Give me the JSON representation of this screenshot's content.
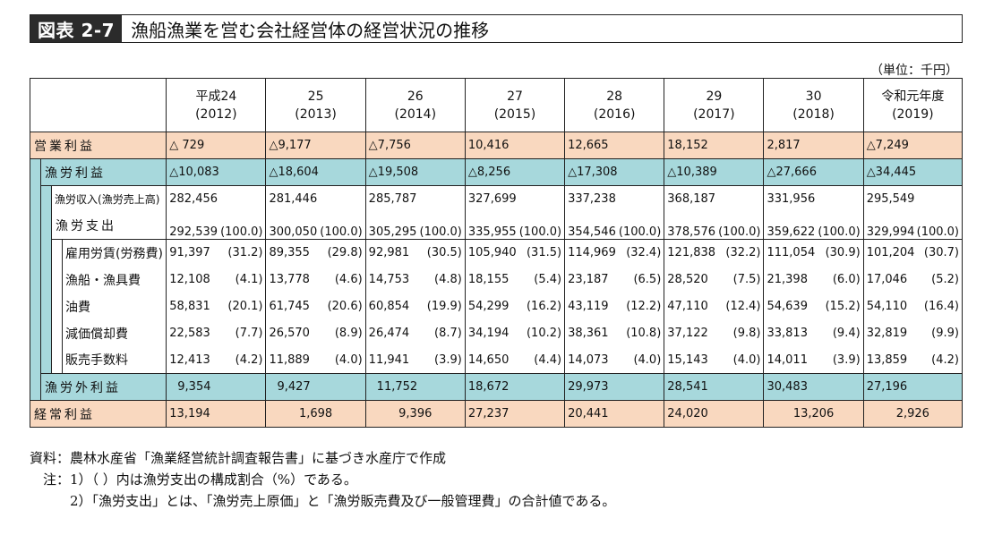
{
  "figure": {
    "label": "図表 2-7",
    "title": "漁船漁業を営む会社経営体の経営状況の推移"
  },
  "unit": "（単位：千円）",
  "columns": [
    {
      "top": "平成24",
      "bottom": "(2012)"
    },
    {
      "top": "25",
      "bottom": "(2013)"
    },
    {
      "top": "26",
      "bottom": "(2014)"
    },
    {
      "top": "27",
      "bottom": "(2015)"
    },
    {
      "top": "28",
      "bottom": "(2016)"
    },
    {
      "top": "29",
      "bottom": "(2017)"
    },
    {
      "top": "30",
      "bottom": "(2018)"
    },
    {
      "top": "令和元年度",
      "bottom": "(2019)"
    }
  ],
  "rows": {
    "operating_profit": {
      "label": "営業利益",
      "values": [
        "△ 729",
        "△9,177",
        "△7,756",
        "10,416",
        "12,665",
        "18,152",
        "2,817",
        "△7,249"
      ]
    },
    "fishing_profit": {
      "label": "漁労利益",
      "values": [
        "△10,083",
        "△18,604",
        "△19,508",
        "△8,256",
        "△17,308",
        "△10,389",
        "△27,666",
        "△34,445"
      ]
    },
    "fishing_income": {
      "label": "漁労収入(漁労売上高)",
      "values": [
        "282,456",
        "281,446",
        "285,787",
        "327,699",
        "337,238",
        "368,187",
        "331,956",
        "295,549"
      ]
    },
    "fishing_expense": {
      "label": "漁労支出",
      "values": [
        [
          "292,539",
          "(100.0)"
        ],
        [
          "300,050",
          "(100.0)"
        ],
        [
          "305,295",
          "(100.0)"
        ],
        [
          "335,955",
          "(100.0)"
        ],
        [
          "354,546",
          "(100.0)"
        ],
        [
          "378,576",
          "(100.0)"
        ],
        [
          "359,622",
          "(100.0)"
        ],
        [
          "329,994",
          "(100.0)"
        ]
      ]
    },
    "labor": {
      "label": "雇用労賃(労務費)",
      "values": [
        [
          "91,397",
          "(31.2)"
        ],
        [
          "89,355",
          "(29.8)"
        ],
        [
          "92,981",
          "(30.5)"
        ],
        [
          "105,940",
          "(31.5)"
        ],
        [
          "114,969",
          "(32.4)"
        ],
        [
          "121,838",
          "(32.2)"
        ],
        [
          "111,054",
          "(30.9)"
        ],
        [
          "101,204",
          "(30.7)"
        ]
      ]
    },
    "gear": {
      "label": "漁船・漁具費",
      "values": [
        [
          "12,108",
          "(4.1)"
        ],
        [
          "13,778",
          "(4.6)"
        ],
        [
          "14,753",
          "(4.8)"
        ],
        [
          "18,155",
          "(5.4)"
        ],
        [
          "23,187",
          "(6.5)"
        ],
        [
          "28,520",
          "(7.5)"
        ],
        [
          "21,398",
          "(6.0)"
        ],
        [
          "17,046",
          "(5.2)"
        ]
      ]
    },
    "fuel": {
      "label": "油費",
      "values": [
        [
          "58,831",
          "(20.1)"
        ],
        [
          "61,745",
          "(20.6)"
        ],
        [
          "60,854",
          "(19.9)"
        ],
        [
          "54,299",
          "(16.2)"
        ],
        [
          "43,119",
          "(12.2)"
        ],
        [
          "47,110",
          "(12.4)"
        ],
        [
          "54,639",
          "(15.2)"
        ],
        [
          "54,110",
          "(16.4)"
        ]
      ]
    },
    "depreciation": {
      "label": "減価償却費",
      "values": [
        [
          "22,583",
          "(7.7)"
        ],
        [
          "26,570",
          "(8.9)"
        ],
        [
          "26,474",
          "(8.7)"
        ],
        [
          "34,194",
          "(10.2)"
        ],
        [
          "38,361",
          "(10.8)"
        ],
        [
          "37,122",
          "(9.8)"
        ],
        [
          "33,813",
          "(9.4)"
        ],
        [
          "32,819",
          "(9.9)"
        ]
      ]
    },
    "sales_commission": {
      "label": "販売手数料",
      "values": [
        [
          "12,413",
          "(4.2)"
        ],
        [
          "11,889",
          "(4.0)"
        ],
        [
          "11,941",
          "(3.9)"
        ],
        [
          "14,650",
          "(4.4)"
        ],
        [
          "14,073",
          "(4.0)"
        ],
        [
          "15,143",
          "(4.0)"
        ],
        [
          "14,011",
          "(3.9)"
        ],
        [
          "13,859",
          "(4.2)"
        ]
      ]
    },
    "non_fishing_profit": {
      "label": "漁労外利益",
      "values": [
        "9,354",
        "9,427",
        "11,752",
        "18,672",
        "29,973",
        "28,541",
        "30,483",
        "27,196"
      ]
    },
    "ordinary_profit": {
      "label": "経常利益",
      "values": [
        "13,194",
        "1,698",
        "9,396",
        "27,237",
        "20,441",
        "24,020",
        "13,206",
        "2,926"
      ]
    }
  },
  "notes": [
    "資料：農林水産省「漁業経営統計調査報告書」に基づき水産庁で作成",
    "　注：1）（ ）内は漁労支出の構成割合（%）である。",
    "　　　2）「漁労支出」とは、「漁労売上原価」と「漁労販売費及び一般管理費」の合計値である。"
  ],
  "colors": {
    "orange_row": "#f9d8bf",
    "teal_row": "#a7d8dc",
    "title_label_bg": "#2b2b2b"
  }
}
